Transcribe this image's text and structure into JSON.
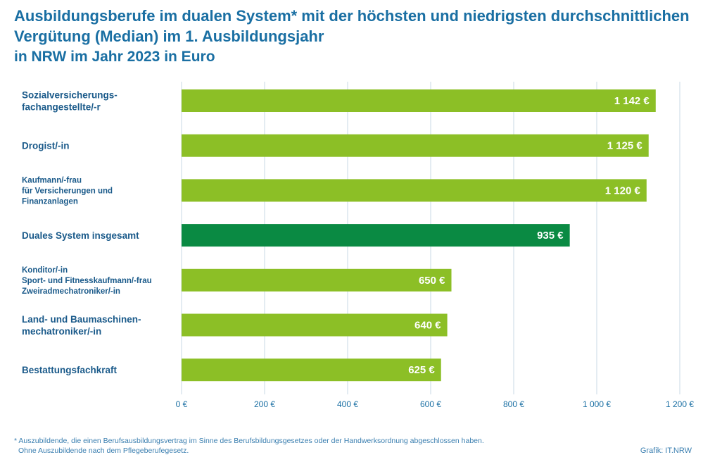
{
  "chart_data": {
    "type": "bar",
    "orientation": "horizontal",
    "title": "Ausbildungsberufe im dualen System* mit der höchsten und niedrigsten durchschnittlichen Vergütung (Median) im 1. Ausbildungsjahr",
    "subtitle": "in NRW im Jahr 2023 in Euro",
    "categories": [
      [
        "Sozialversicherungs-",
        "fachangestellte/-r"
      ],
      [
        "Drogist/-in"
      ],
      [
        "Kaufmann/-frau",
        "für Versicherungen und",
        "Finanzanlagen"
      ],
      [
        "Duales System insgesamt"
      ],
      [
        "Konditor/-in",
        "Sport- und Fitnesskaufmann/-frau",
        "Zweiradmechatroniker/-in"
      ],
      [
        "Land- und Baumaschinen-",
        "mechatroniker/-in"
      ],
      [
        "Bestattungsfachkraft"
      ]
    ],
    "values": [
      1142,
      1125,
      1120,
      935,
      650,
      640,
      625
    ],
    "value_labels": [
      "1 142 €",
      "1 125 €",
      "1 120 €",
      "935 €",
      "650 €",
      "640 €",
      "625 €"
    ],
    "highlight_index": 3,
    "xlim": [
      0,
      1200
    ],
    "xticks": [
      0,
      200,
      400,
      600,
      800,
      1000,
      1200
    ],
    "xtick_labels": [
      "0 €",
      "200 €",
      "400 €",
      "600 €",
      "800 €",
      "1 000 €",
      "1 200 €"
    ],
    "grid": "vertical",
    "colors": {
      "bar": "#8cbf26",
      "highlight": "#0a8a43",
      "grid": "#c8d8e4",
      "text": "#1a6fa3"
    }
  },
  "footnote": {
    "line1": "* Auszubildende, die einen Berufsausbildungsvertrag im Sinne des Berufsbildungsgesetzes oder der Handwerksordnung abgeschlossen haben.",
    "line2": "Ohne Auszubildende nach dem Pflegeberufegesetz."
  },
  "source": "Grafik: IT.NRW"
}
